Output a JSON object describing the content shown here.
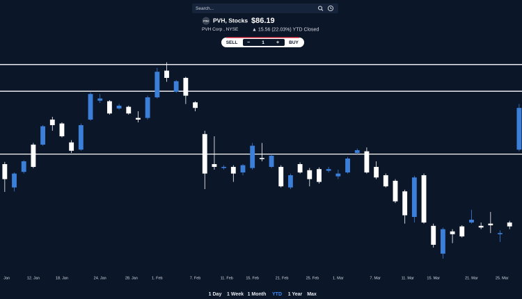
{
  "search": {
    "placeholder": "Search..."
  },
  "quote": {
    "logo": "PVH",
    "title": "PVH, Stocks",
    "price": "$86.19",
    "company": "PVH Corp , NYSE",
    "change": "▲ 15.56 (22.03%) YTD Closed"
  },
  "trade": {
    "sell": "SELL",
    "minus": "−",
    "quantity": "1",
    "plus": "+",
    "buy": "BUY"
  },
  "timeframes": {
    "items": [
      "1 Day",
      "1 Week",
      "1 Month",
      "YTD",
      "1 Year",
      "Max"
    ],
    "active": "YTD"
  },
  "chart_data": {
    "type": "candlestick",
    "up_color": "#3b7fd9",
    "down_color": "#ffffff",
    "level_color": "#ffffff",
    "xlim": [
      -0.5,
      54.3
    ],
    "ylim": [
      60,
      100
    ],
    "x": [
      0,
      1,
      2,
      3,
      4,
      5,
      6,
      7,
      8,
      9,
      10,
      11,
      12,
      13,
      14,
      15,
      16,
      17,
      18,
      19,
      20,
      21,
      22,
      23,
      24,
      25,
      26,
      27,
      28,
      29,
      30,
      31,
      32,
      33,
      34,
      35,
      36,
      37,
      38,
      39,
      40,
      41,
      42,
      43,
      44,
      45,
      46,
      47,
      48,
      49,
      50,
      51,
      52,
      53,
      54
    ],
    "open": [
      80.5,
      76.3,
      79.1,
      84,
      84,
      88.5,
      87.8,
      84.4,
      83.1,
      88.5,
      91.9,
      91.8,
      90.5,
      90.8,
      88.8,
      88.8,
      92.5,
      97.3,
      93.5,
      96,
      91.6,
      85.9,
      80.5,
      79.8,
      80,
      79,
      79.8,
      81.6,
      80,
      80,
      76.3,
      80.5,
      79.4,
      79.6,
      79.3,
      78.3,
      79,
      82.5,
      82.8,
      80,
      78.5,
      77.5,
      75.6,
      71,
      78.5,
      69.4,
      64.4,
      68.4,
      69.3,
      70,
      69.4,
      69.8,
      67.9,
      70,
      83.1
    ],
    "high": [
      80.9,
      79,
      81.2,
      84.3,
      87.5,
      89,
      88,
      84.8,
      87.8,
      93.4,
      93.1,
      92,
      91.3,
      91,
      90,
      92.8,
      97.8,
      98.8,
      95.6,
      96.2,
      91.8,
      86.5,
      85.5,
      80.3,
      80.3,
      80.5,
      84.3,
      84.3,
      82.3,
      80.3,
      78.8,
      80.8,
      79.8,
      79.9,
      80,
      79.5,
      81.8,
      83.3,
      83.5,
      81,
      78.8,
      77.8,
      75.9,
      78.4,
      78.8,
      69.8,
      69.1,
      68.8,
      69.5,
      72.3,
      70,
      71.9,
      68.6,
      70.3,
      91.3
    ],
    "low": [
      75.5,
      75.6,
      78.8,
      79.8,
      83.8,
      86.5,
      85.3,
      82.5,
      82.9,
      88.3,
      91.5,
      89.4,
      90.3,
      89.4,
      88,
      88.5,
      92.3,
      95.3,
      93.3,
      91.3,
      90,
      76,
      79.5,
      79.5,
      77.3,
      78.5,
      79.5,
      81,
      79.8,
      76.3,
      76,
      78.8,
      76.5,
      77,
      79,
      77.8,
      78.8,
      82.3,
      78.8,
      77.8,
      76.3,
      73.5,
      69.8,
      70,
      69.8,
      65.5,
      63.5,
      66.3,
      67.3,
      69.8,
      68.8,
      68.1,
      66.5,
      68.8,
      82.8
    ],
    "close": [
      77.8,
      78.8,
      81,
      80,
      87.3,
      87.5,
      85.5,
      82.9,
      87.5,
      93.1,
      92.3,
      89.6,
      91,
      89.6,
      88.5,
      92.5,
      97.1,
      96,
      95.4,
      92.8,
      90.6,
      78.8,
      80,
      80,
      78.8,
      80.3,
      83.8,
      81.4,
      82,
      76.5,
      78.5,
      79,
      77.8,
      77.3,
      79.6,
      78.8,
      81.5,
      83,
      79,
      78.1,
      76.5,
      73.8,
      71.3,
      78.1,
      70,
      66,
      68.8,
      67.9,
      67.5,
      70.5,
      69.1,
      69.5,
      68.1,
      69.3,
      90.6
    ],
    "levels": [
      98.4,
      93.6,
      82.3
    ],
    "xticks": [
      {
        "value": -0.13,
        "label": "Jan"
      },
      {
        "value": 3.0,
        "label": "12. Jan"
      },
      {
        "value": 6.0,
        "label": "18. Jan"
      },
      {
        "value": 10.0,
        "label": "24. Jan"
      },
      {
        "value": 13.3,
        "label": "28. Jan"
      },
      {
        "value": 16.0,
        "label": "1. Feb"
      },
      {
        "value": 20.0,
        "label": "7. Feb"
      },
      {
        "value": 23.3,
        "label": "11. Feb"
      },
      {
        "value": 26.0,
        "label": "15. Feb"
      },
      {
        "value": 29.1,
        "label": "21. Feb"
      },
      {
        "value": 32.3,
        "label": "25. Feb"
      },
      {
        "value": 35.0,
        "label": "1. Mar"
      },
      {
        "value": 38.9,
        "label": "7. Mar"
      },
      {
        "value": 42.3,
        "label": "11. Mar"
      },
      {
        "value": 45.0,
        "label": "15. Mar"
      },
      {
        "value": 49.0,
        "label": "21. Mar"
      },
      {
        "value": 52.2,
        "label": "25. Mar"
      }
    ]
  }
}
